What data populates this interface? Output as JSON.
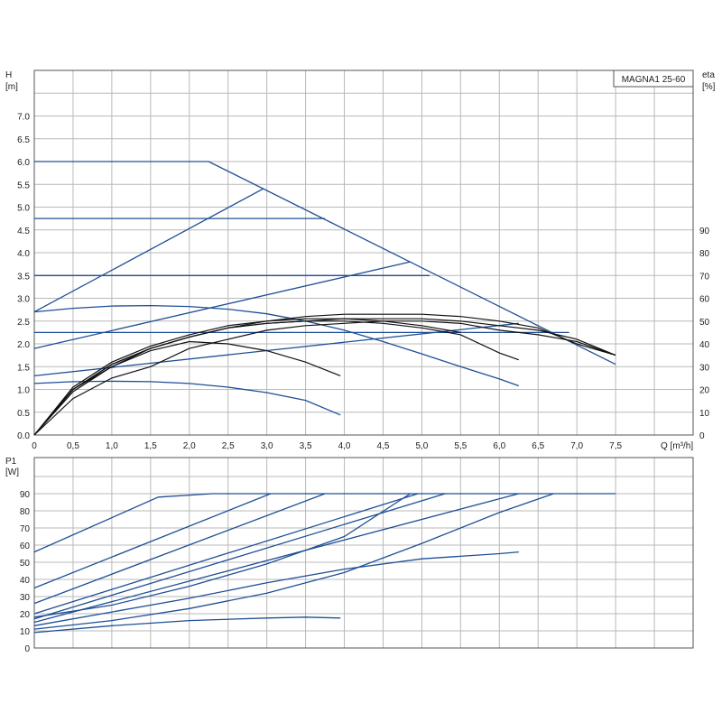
{
  "chart_data": [
    {
      "type": "line",
      "title": "MAGNA1 25-60",
      "x_axis": {
        "label": "Q [m³/h]",
        "range": [
          0,
          8.5
        ],
        "ticks": [
          "0",
          "0,5",
          "1,0",
          "1,5",
          "2,0",
          "2,5",
          "3,0",
          "3,5",
          "4,0",
          "4,5",
          "5,0",
          "5,5",
          "6,0",
          "6,5",
          "7,0",
          "7,5"
        ]
      },
      "y_left": {
        "label_top": "H",
        "label_unit": "[m]",
        "range": [
          0,
          7.5
        ],
        "ticks": [
          "0.0",
          "0.5",
          "1.0",
          "1.5",
          "2.0",
          "2.5",
          "3.0",
          "3.5",
          "4.0",
          "4.5",
          "5.0",
          "5.5",
          "6.0",
          "6.5",
          "7.0"
        ]
      },
      "y_right": {
        "label_top": "eta",
        "label_unit": "[%]",
        "range": [
          0,
          100
        ],
        "ticks": [
          "0",
          "10",
          "20",
          "30",
          "40",
          "50",
          "60",
          "70",
          "80",
          "90"
        ]
      },
      "grid": true,
      "head_curves": [
        [
          [
            0,
            6.0
          ],
          [
            2.25,
            6.0
          ],
          [
            7.5,
            1.55
          ]
        ],
        [
          [
            0,
            4.75
          ],
          [
            3.75,
            4.75
          ]
        ],
        [
          [
            0,
            3.5
          ],
          [
            5.1,
            3.5
          ]
        ],
        [
          [
            0,
            2.25
          ],
          [
            6.9,
            2.25
          ]
        ],
        [
          [
            0,
            2.7
          ],
          [
            0.5,
            2.78
          ],
          [
            1.0,
            2.83
          ],
          [
            1.5,
            2.84
          ],
          [
            2.0,
            2.82
          ],
          [
            2.5,
            2.76
          ],
          [
            3.0,
            2.66
          ],
          [
            3.5,
            2.5
          ],
          [
            4.0,
            2.3
          ],
          [
            4.5,
            2.05
          ],
          [
            5.0,
            1.78
          ],
          [
            5.5,
            1.5
          ],
          [
            6.0,
            1.23
          ],
          [
            6.25,
            1.08
          ]
        ],
        [
          [
            0,
            1.13
          ],
          [
            0.5,
            1.17
          ],
          [
            1.0,
            1.18
          ],
          [
            1.5,
            1.17
          ],
          [
            2.0,
            1.13
          ],
          [
            2.5,
            1.05
          ],
          [
            3.0,
            0.93
          ],
          [
            3.5,
            0.76
          ],
          [
            3.95,
            0.44
          ]
        ]
      ],
      "head_control_lines": [
        [
          [
            0,
            2.7
          ],
          [
            2.95,
            5.4
          ]
        ],
        [
          [
            0,
            1.9
          ],
          [
            4.85,
            3.8
          ]
        ],
        [
          [
            0,
            1.3
          ],
          [
            6.25,
            2.45
          ]
        ]
      ],
      "efficiency_curves": [
        [
          [
            0,
            0
          ],
          [
            0.5,
            19
          ],
          [
            1.0,
            30
          ],
          [
            1.5,
            37
          ],
          [
            2.0,
            41
          ],
          [
            2.5,
            40
          ],
          [
            3.0,
            37
          ],
          [
            3.5,
            32
          ],
          [
            3.95,
            26
          ]
        ],
        [
          [
            0,
            0
          ],
          [
            0.5,
            20
          ],
          [
            1.0,
            31
          ],
          [
            1.5,
            38
          ],
          [
            2.0,
            43
          ],
          [
            2.5,
            47
          ],
          [
            3.0,
            49
          ],
          [
            3.5,
            50
          ],
          [
            4.0,
            50
          ],
          [
            4.5,
            49
          ],
          [
            5.0,
            47
          ],
          [
            5.5,
            44
          ],
          [
            6.0,
            36
          ],
          [
            6.25,
            33
          ]
        ],
        [
          [
            0,
            0
          ],
          [
            0.5,
            20
          ],
          [
            1.0,
            31
          ],
          [
            1.5,
            38
          ],
          [
            2.0,
            43
          ],
          [
            2.5,
            47
          ],
          [
            3.0,
            50
          ],
          [
            3.5,
            52
          ],
          [
            4.0,
            53
          ],
          [
            4.5,
            53
          ],
          [
            5.0,
            53
          ],
          [
            5.5,
            52
          ],
          [
            6.0,
            50
          ],
          [
            6.5,
            47
          ],
          [
            7.0,
            40
          ],
          [
            7.5,
            35
          ]
        ],
        [
          [
            0,
            0
          ],
          [
            0.5,
            21
          ],
          [
            1.0,
            32
          ],
          [
            1.5,
            39
          ],
          [
            2.0,
            44
          ],
          [
            2.5,
            48
          ],
          [
            3.0,
            50
          ],
          [
            3.5,
            51
          ],
          [
            4.0,
            51
          ],
          [
            4.5,
            50
          ],
          [
            5.0,
            48
          ],
          [
            5.5,
            45
          ]
        ],
        [
          [
            0,
            0
          ],
          [
            0.5,
            20
          ],
          [
            1.0,
            30
          ],
          [
            1.5,
            38
          ],
          [
            2.0,
            43
          ],
          [
            2.5,
            47
          ],
          [
            3.0,
            49
          ],
          [
            3.5,
            50
          ],
          [
            4.0,
            51
          ],
          [
            4.5,
            51
          ],
          [
            5.0,
            51
          ],
          [
            5.5,
            50
          ],
          [
            6.0,
            48
          ],
          [
            6.5,
            46
          ],
          [
            7.0,
            42
          ],
          [
            7.5,
            35
          ]
        ],
        [
          [
            0,
            0
          ],
          [
            0.5,
            16
          ],
          [
            1.0,
            25
          ],
          [
            1.5,
            30
          ],
          [
            2.0,
            38
          ],
          [
            2.5,
            42
          ],
          [
            3.0,
            46
          ],
          [
            3.5,
            48
          ],
          [
            4.0,
            49
          ],
          [
            4.5,
            50
          ],
          [
            5.0,
            50
          ],
          [
            5.5,
            49
          ],
          [
            6.0,
            46
          ],
          [
            6.5,
            44
          ],
          [
            7.0,
            41
          ],
          [
            7.5,
            35
          ]
        ]
      ]
    },
    {
      "type": "line",
      "x_axis": {
        "range": [
          0,
          8.5
        ]
      },
      "y_left": {
        "label_top": "P1",
        "label_unit": "[W]",
        "range": [
          0,
          100
        ],
        "ticks": [
          "0",
          "10",
          "20",
          "30",
          "40",
          "50",
          "60",
          "70",
          "80",
          "90"
        ]
      },
      "grid": true,
      "power_curves": [
        [
          [
            0,
            56
          ],
          [
            1.6,
            88
          ],
          [
            2.3,
            90
          ],
          [
            7.5,
            90
          ]
        ],
        [
          [
            0,
            35
          ],
          [
            3.05,
            90
          ]
        ],
        [
          [
            0,
            26
          ],
          [
            3.75,
            90
          ]
        ],
        [
          [
            0,
            20
          ],
          [
            4.95,
            90
          ]
        ],
        [
          [
            0,
            17
          ],
          [
            5.3,
            90
          ]
        ],
        [
          [
            0,
            15
          ],
          [
            6.25,
            90
          ]
        ],
        [
          [
            0,
            18
          ],
          [
            1.0,
            25
          ],
          [
            2.0,
            36
          ],
          [
            3.0,
            49
          ],
          [
            4.0,
            65
          ],
          [
            4.85,
            90
          ]
        ],
        [
          [
            0,
            11
          ],
          [
            1.0,
            16
          ],
          [
            2.0,
            23
          ],
          [
            3.0,
            32
          ],
          [
            4.0,
            44
          ],
          [
            5.0,
            61
          ],
          [
            6.0,
            79
          ],
          [
            6.7,
            90
          ]
        ],
        [
          [
            0,
            13
          ],
          [
            1.0,
            21
          ],
          [
            2.0,
            29
          ],
          [
            3.0,
            38
          ],
          [
            4.0,
            46
          ],
          [
            5.0,
            52
          ],
          [
            6.0,
            55
          ],
          [
            6.25,
            56
          ]
        ],
        [
          [
            0,
            9
          ],
          [
            1.0,
            13
          ],
          [
            2.0,
            16
          ],
          [
            3.0,
            17.5
          ],
          [
            3.5,
            18
          ],
          [
            3.95,
            17.5
          ]
        ]
      ]
    }
  ]
}
